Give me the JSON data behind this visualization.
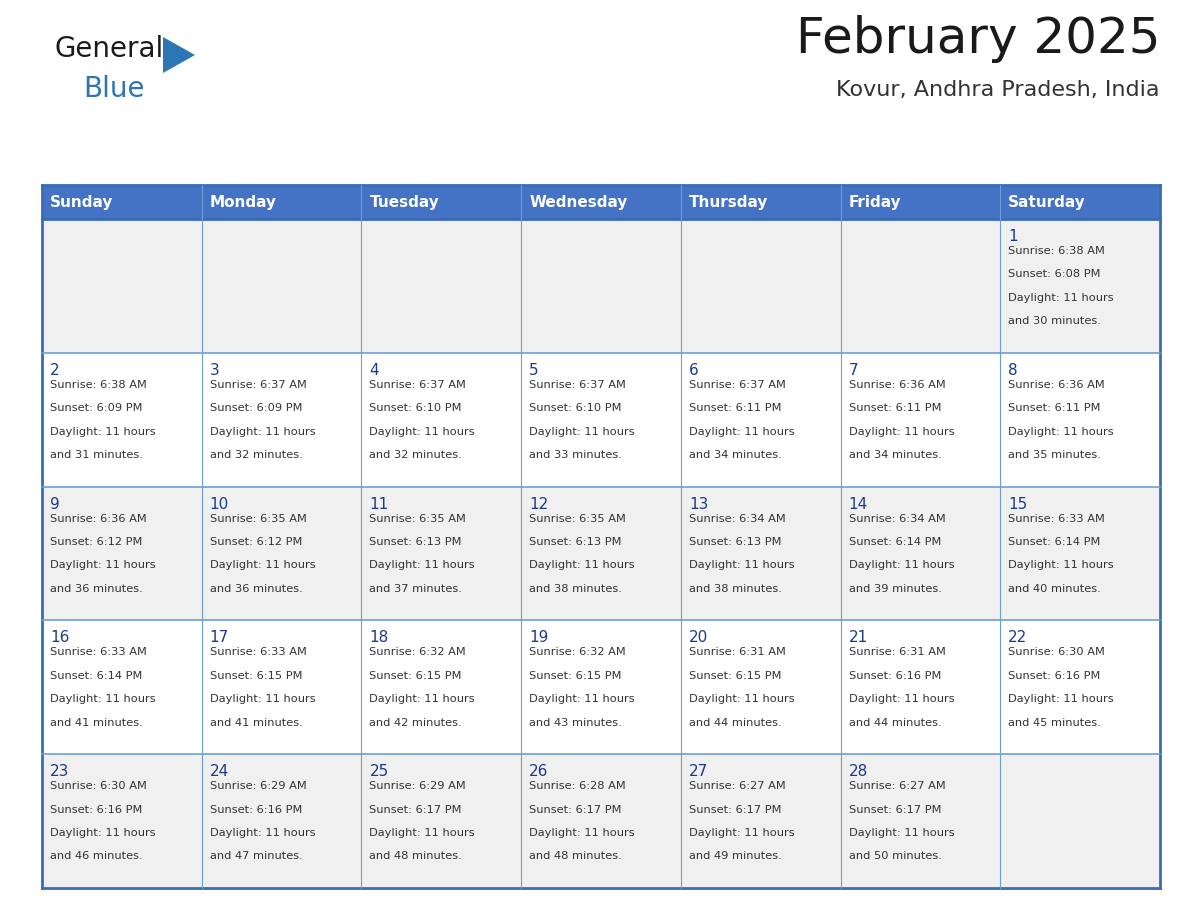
{
  "title": "February 2025",
  "subtitle": "Kovur, Andhra Pradesh, India",
  "days_of_week": [
    "Sunday",
    "Monday",
    "Tuesday",
    "Wednesday",
    "Thursday",
    "Friday",
    "Saturday"
  ],
  "header_bg": "#4472C4",
  "header_text": "#FFFFFF",
  "cell_bg_even": "#F0F0F0",
  "cell_bg_odd": "#FFFFFF",
  "border_color_dark": "#3A6DB5",
  "border_color_light": "#6A9FD8",
  "title_color": "#1a1a1a",
  "subtitle_color": "#333333",
  "text_color": "#333333",
  "day_num_color": "#1a3a8c",
  "logo_general_color": "#1a1a1a",
  "logo_blue_color": "#2E75B6",
  "logo_triangle_color": "#2E75B6",
  "calendar": [
    [
      {
        "day": null,
        "sunrise": null,
        "sunset": null,
        "daylight": null
      },
      {
        "day": null,
        "sunrise": null,
        "sunset": null,
        "daylight": null
      },
      {
        "day": null,
        "sunrise": null,
        "sunset": null,
        "daylight": null
      },
      {
        "day": null,
        "sunrise": null,
        "sunset": null,
        "daylight": null
      },
      {
        "day": null,
        "sunrise": null,
        "sunset": null,
        "daylight": null
      },
      {
        "day": null,
        "sunrise": null,
        "sunset": null,
        "daylight": null
      },
      {
        "day": 1,
        "sunrise": "6:38 AM",
        "sunset": "6:08 PM",
        "daylight": "11 hours and 30 minutes."
      }
    ],
    [
      {
        "day": 2,
        "sunrise": "6:38 AM",
        "sunset": "6:09 PM",
        "daylight": "11 hours and 31 minutes."
      },
      {
        "day": 3,
        "sunrise": "6:37 AM",
        "sunset": "6:09 PM",
        "daylight": "11 hours and 32 minutes."
      },
      {
        "day": 4,
        "sunrise": "6:37 AM",
        "sunset": "6:10 PM",
        "daylight": "11 hours and 32 minutes."
      },
      {
        "day": 5,
        "sunrise": "6:37 AM",
        "sunset": "6:10 PM",
        "daylight": "11 hours and 33 minutes."
      },
      {
        "day": 6,
        "sunrise": "6:37 AM",
        "sunset": "6:11 PM",
        "daylight": "11 hours and 34 minutes."
      },
      {
        "day": 7,
        "sunrise": "6:36 AM",
        "sunset": "6:11 PM",
        "daylight": "11 hours and 34 minutes."
      },
      {
        "day": 8,
        "sunrise": "6:36 AM",
        "sunset": "6:11 PM",
        "daylight": "11 hours and 35 minutes."
      }
    ],
    [
      {
        "day": 9,
        "sunrise": "6:36 AM",
        "sunset": "6:12 PM",
        "daylight": "11 hours and 36 minutes."
      },
      {
        "day": 10,
        "sunrise": "6:35 AM",
        "sunset": "6:12 PM",
        "daylight": "11 hours and 36 minutes."
      },
      {
        "day": 11,
        "sunrise": "6:35 AM",
        "sunset": "6:13 PM",
        "daylight": "11 hours and 37 minutes."
      },
      {
        "day": 12,
        "sunrise": "6:35 AM",
        "sunset": "6:13 PM",
        "daylight": "11 hours and 38 minutes."
      },
      {
        "day": 13,
        "sunrise": "6:34 AM",
        "sunset": "6:13 PM",
        "daylight": "11 hours and 38 minutes."
      },
      {
        "day": 14,
        "sunrise": "6:34 AM",
        "sunset": "6:14 PM",
        "daylight": "11 hours and 39 minutes."
      },
      {
        "day": 15,
        "sunrise": "6:33 AM",
        "sunset": "6:14 PM",
        "daylight": "11 hours and 40 minutes."
      }
    ],
    [
      {
        "day": 16,
        "sunrise": "6:33 AM",
        "sunset": "6:14 PM",
        "daylight": "11 hours and 41 minutes."
      },
      {
        "day": 17,
        "sunrise": "6:33 AM",
        "sunset": "6:15 PM",
        "daylight": "11 hours and 41 minutes."
      },
      {
        "day": 18,
        "sunrise": "6:32 AM",
        "sunset": "6:15 PM",
        "daylight": "11 hours and 42 minutes."
      },
      {
        "day": 19,
        "sunrise": "6:32 AM",
        "sunset": "6:15 PM",
        "daylight": "11 hours and 43 minutes."
      },
      {
        "day": 20,
        "sunrise": "6:31 AM",
        "sunset": "6:15 PM",
        "daylight": "11 hours and 44 minutes."
      },
      {
        "day": 21,
        "sunrise": "6:31 AM",
        "sunset": "6:16 PM",
        "daylight": "11 hours and 44 minutes."
      },
      {
        "day": 22,
        "sunrise": "6:30 AM",
        "sunset": "6:16 PM",
        "daylight": "11 hours and 45 minutes."
      }
    ],
    [
      {
        "day": 23,
        "sunrise": "6:30 AM",
        "sunset": "6:16 PM",
        "daylight": "11 hours and 46 minutes."
      },
      {
        "day": 24,
        "sunrise": "6:29 AM",
        "sunset": "6:16 PM",
        "daylight": "11 hours and 47 minutes."
      },
      {
        "day": 25,
        "sunrise": "6:29 AM",
        "sunset": "6:17 PM",
        "daylight": "11 hours and 48 minutes."
      },
      {
        "day": 26,
        "sunrise": "6:28 AM",
        "sunset": "6:17 PM",
        "daylight": "11 hours and 48 minutes."
      },
      {
        "day": 27,
        "sunrise": "6:27 AM",
        "sunset": "6:17 PM",
        "daylight": "11 hours and 49 minutes."
      },
      {
        "day": 28,
        "sunrise": "6:27 AM",
        "sunset": "6:17 PM",
        "daylight": "11 hours and 50 minutes."
      },
      {
        "day": null,
        "sunrise": null,
        "sunset": null,
        "daylight": null
      }
    ]
  ]
}
